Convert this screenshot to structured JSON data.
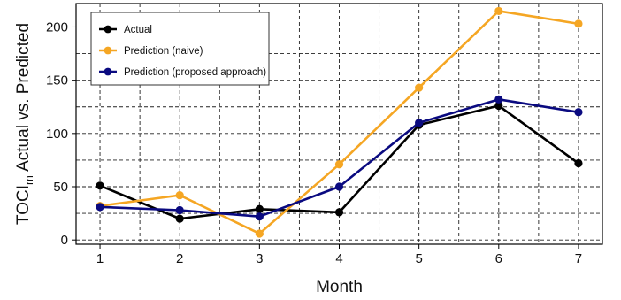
{
  "chart_data": {
    "type": "line",
    "xlabel": "Month",
    "ylabel": {
      "prefix": "TOCI",
      "subscript": "m",
      "suffix": " Actual vs. Predicted"
    },
    "categories": [
      1,
      2,
      3,
      4,
      5,
      6,
      7
    ],
    "xlim": [
      0.7,
      7.3
    ],
    "ylim": [
      -4,
      222
    ],
    "yticks": [
      0,
      50,
      100,
      150,
      200
    ],
    "grid": true,
    "grid_style": "dashed",
    "legend_position": "top-left",
    "series": [
      {
        "name": "Actual",
        "color": "#000000",
        "values": [
          51,
          20,
          29,
          26,
          108,
          126,
          72
        ]
      },
      {
        "name": "Prediction (naive)",
        "color": "#f5a623",
        "values": [
          32,
          42,
          6,
          71,
          143,
          215,
          203
        ]
      },
      {
        "name": "Prediction (proposed approach)",
        "color": "#0a0a80",
        "values": [
          31,
          28,
          22,
          50,
          110,
          132,
          120
        ]
      }
    ]
  }
}
